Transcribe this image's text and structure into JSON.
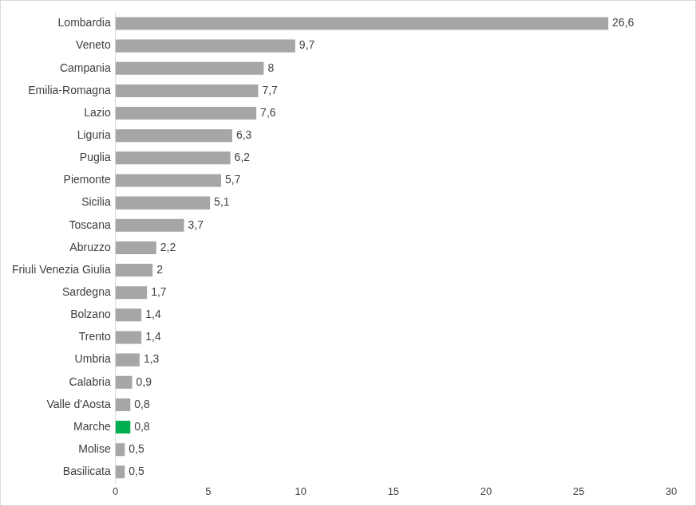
{
  "chart_data": {
    "type": "bar",
    "orientation": "horizontal",
    "categories": [
      "Lombardia",
      "Veneto",
      "Campania",
      "Emilia-Romagna",
      "Lazio",
      "Liguria",
      "Puglia",
      "Piemonte",
      "Sicilia",
      "Toscana",
      "Abruzzo",
      "Friuli Venezia Giulia",
      "Sardegna",
      "Bolzano",
      "Trento",
      "Umbria",
      "Calabria",
      "Valle d'Aosta",
      "Marche",
      "Molise",
      "Basilicata"
    ],
    "values": [
      26.6,
      9.7,
      8,
      7.7,
      7.6,
      6.3,
      6.2,
      5.7,
      5.1,
      3.7,
      2.2,
      2,
      1.7,
      1.4,
      1.4,
      1.3,
      0.9,
      0.8,
      0.8,
      0.5,
      0.5
    ],
    "value_labels": [
      "26,6",
      "9,7",
      "8",
      "7,7",
      "7,6",
      "6,3",
      "6,2",
      "5,7",
      "5,1",
      "3,7",
      "2,2",
      "2",
      "1,7",
      "1,4",
      "1,4",
      "1,3",
      "0,9",
      "0,8",
      "0,8",
      "0,5",
      "0,5"
    ],
    "colors": [
      "#a6a6a6",
      "#a6a6a6",
      "#a6a6a6",
      "#a6a6a6",
      "#a6a6a6",
      "#a6a6a6",
      "#a6a6a6",
      "#a6a6a6",
      "#a6a6a6",
      "#a6a6a6",
      "#a6a6a6",
      "#a6a6a6",
      "#a6a6a6",
      "#a6a6a6",
      "#a6a6a6",
      "#a6a6a6",
      "#a6a6a6",
      "#a6a6a6",
      "#00b050",
      "#a6a6a6",
      "#a6a6a6"
    ],
    "xlim": [
      0,
      30
    ],
    "xticks": [
      0,
      5,
      10,
      15,
      20,
      25,
      30
    ],
    "grid": false,
    "data_labels": true
  }
}
